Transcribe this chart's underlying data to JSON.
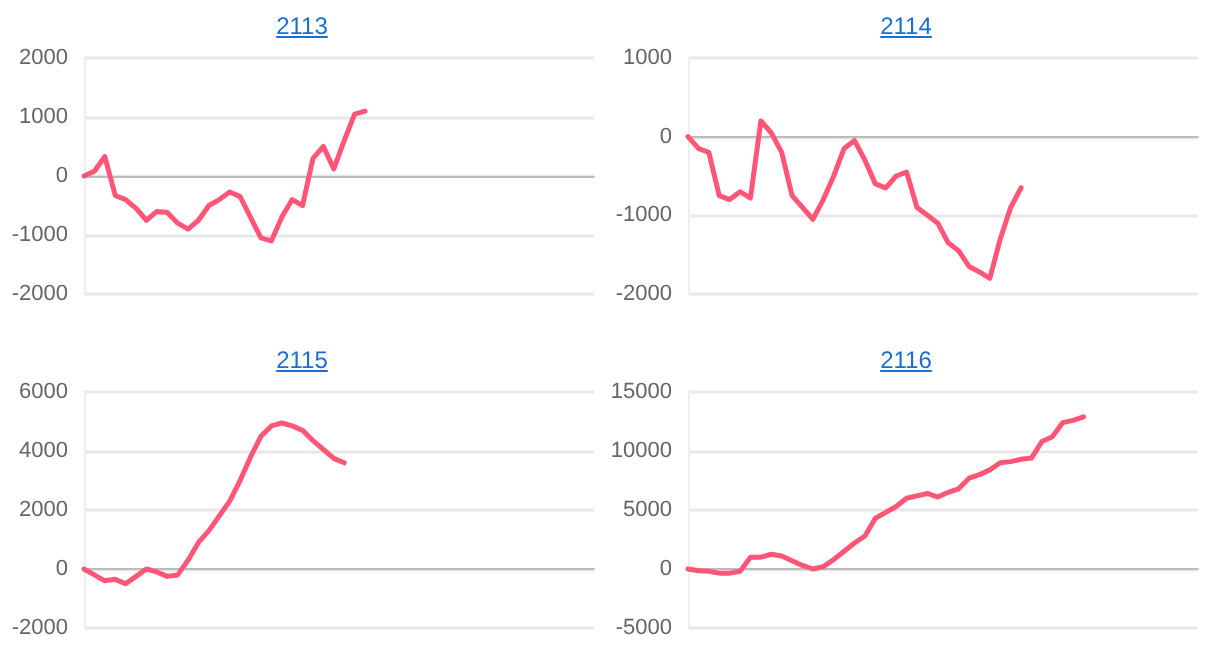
{
  "chart_data": [
    {
      "type": "line",
      "title": "2113",
      "categories": [
        null,
        null,
        null,
        null,
        null,
        null,
        null,
        null,
        null,
        null,
        null,
        null,
        null,
        null,
        null,
        null,
        null,
        null,
        null,
        null,
        null,
        null,
        null,
        null,
        null,
        null,
        null,
        null,
        null,
        null,
        null,
        null,
        null,
        null,
        null,
        null,
        null,
        null,
        null,
        null,
        null,
        null,
        null,
        null,
        null,
        null,
        null,
        null,
        null,
        null
      ],
      "series": [
        {
          "color": "#ff5577",
          "values": [
            0,
            80,
            330,
            -330,
            -400,
            -550,
            -750,
            -600,
            -620,
            -800,
            -900,
            -750,
            -500,
            -400,
            -270,
            -350,
            -700,
            -1050,
            -1100,
            -700,
            -400,
            -500,
            300,
            500,
            120,
            600,
            1050,
            1100,
            null,
            null,
            null,
            null,
            null,
            null,
            null,
            null,
            null,
            null,
            null,
            null,
            null,
            null,
            null,
            null,
            null,
            null,
            null,
            null,
            null,
            null
          ]
        }
      ],
      "ylim": [
        -2000,
        2000
      ],
      "yticks": [
        -2000,
        -1000,
        0,
        1000,
        2000
      ],
      "grid": "y",
      "tick_labels": "y"
    },
    {
      "type": "line",
      "title": "2114",
      "categories": [
        null,
        null,
        null,
        null,
        null,
        null,
        null,
        null,
        null,
        null,
        null,
        null,
        null,
        null,
        null,
        null,
        null,
        null,
        null,
        null,
        null,
        null,
        null,
        null,
        null,
        null,
        null,
        null,
        null,
        null,
        null,
        null,
        null,
        null,
        null,
        null,
        null,
        null,
        null,
        null,
        null,
        null,
        null,
        null,
        null,
        null,
        null,
        null,
        null,
        null
      ],
      "series": [
        {
          "color": "#ff5577",
          "values": [
            0,
            -150,
            -200,
            -750,
            -800,
            -700,
            -780,
            200,
            50,
            -200,
            -750,
            -900,
            -1050,
            -800,
            -500,
            -150,
            -50,
            -300,
            -600,
            -650,
            -500,
            -450,
            -900,
            -1000,
            -1100,
            -1350,
            -1450,
            -1650,
            -1720,
            -1800,
            -1300,
            -900,
            -650,
            null,
            null,
            null,
            null,
            null,
            null,
            null,
            null,
            null,
            null,
            null,
            null,
            null,
            null,
            null,
            null,
            null
          ]
        }
      ],
      "ylim": [
        -2000,
        1000
      ],
      "yticks": [
        -2000,
        -1000,
        0,
        1000
      ],
      "grid": "y",
      "tick_labels": "y"
    },
    {
      "type": "line",
      "title": "2115",
      "categories": [
        null,
        null,
        null,
        null,
        null,
        null,
        null,
        null,
        null,
        null,
        null,
        null,
        null,
        null,
        null,
        null,
        null,
        null,
        null,
        null,
        null,
        null,
        null,
        null,
        null,
        null,
        null,
        null,
        null,
        null,
        null,
        null,
        null,
        null,
        null,
        null,
        null,
        null,
        null,
        null,
        null,
        null,
        null,
        null,
        null,
        null,
        null,
        null,
        null,
        null
      ],
      "series": [
        {
          "color": "#ff5577",
          "values": [
            0,
            -200,
            -400,
            -350,
            -500,
            -250,
            0,
            -100,
            -250,
            -200,
            300,
            900,
            1300,
            1800,
            2300,
            3000,
            3800,
            4500,
            4850,
            4950,
            4850,
            4700,
            4350,
            4050,
            3750,
            3600,
            null,
            null,
            null,
            null,
            null,
            null,
            null,
            null,
            null,
            null,
            null,
            null,
            null,
            null,
            null,
            null,
            null,
            null,
            null,
            null,
            null,
            null,
            null,
            null
          ]
        }
      ],
      "ylim": [
        -2000,
        6000
      ],
      "yticks": [
        -2000,
        0,
        2000,
        4000,
        6000
      ],
      "grid": "y",
      "tick_labels": "y"
    },
    {
      "type": "line",
      "title": "2116",
      "categories": [
        null,
        null,
        null,
        null,
        null,
        null,
        null,
        null,
        null,
        null,
        null,
        null,
        null,
        null,
        null,
        null,
        null,
        null,
        null,
        null,
        null,
        null,
        null,
        null,
        null,
        null,
        null,
        null,
        null,
        null,
        null,
        null,
        null,
        null,
        null,
        null,
        null,
        null,
        null,
        null,
        null,
        null,
        null,
        null,
        null,
        null,
        null,
        null,
        null,
        null
      ],
      "series": [
        {
          "color": "#ff5577",
          "values": [
            0,
            -150,
            -200,
            -350,
            -350,
            -200,
            1000,
            1000,
            1250,
            1100,
            700,
            300,
            0,
            200,
            800,
            1500,
            2200,
            2800,
            4300,
            4800,
            5300,
            6000,
            6200,
            6400,
            6100,
            6500,
            6800,
            7700,
            8000,
            8400,
            9000,
            9100,
            9300,
            9400,
            10800,
            11200,
            12400,
            12600,
            12900,
            null,
            null,
            null,
            null,
            null,
            null,
            null,
            null,
            null,
            null,
            null
          ]
        }
      ],
      "ylim": [
        -5000,
        15000
      ],
      "yticks": [
        -5000,
        0,
        5000,
        10000,
        15000
      ],
      "grid": "y",
      "tick_labels": "y"
    }
  ]
}
